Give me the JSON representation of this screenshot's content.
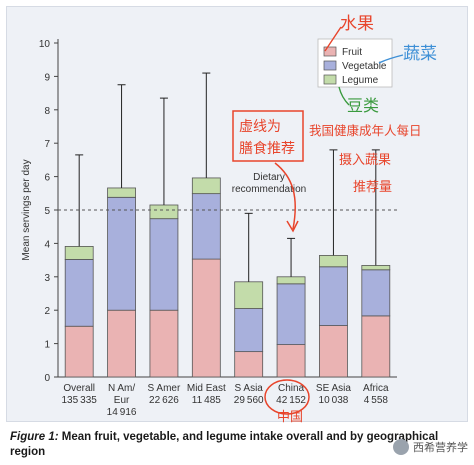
{
  "chart_data": {
    "type": "bar",
    "stacked": true,
    "ylabel": "Mean servings per day",
    "ylim": [
      0,
      10
    ],
    "yticks": [
      0,
      1,
      2,
      3,
      4,
      5,
      6,
      7,
      8,
      9,
      10
    ],
    "categories": [
      {
        "name": "Overall",
        "n": "135335"
      },
      {
        "name": "N Am/ Eur",
        "n": "14916"
      },
      {
        "name": "S Amer",
        "n": "22626"
      },
      {
        "name": "Mid East",
        "n": "11485"
      },
      {
        "name": "S Asia",
        "n": "29560"
      },
      {
        "name": "China",
        "n": "42152"
      },
      {
        "name": "SE Asia",
        "n": "10038"
      },
      {
        "name": "Africa",
        "n": "4558"
      }
    ],
    "series": [
      {
        "name": "Fruit",
        "color": "#eab3b3",
        "values": [
          1.52,
          2.0,
          2.0,
          3.53,
          0.76,
          0.97,
          1.54,
          1.83
        ]
      },
      {
        "name": "Vegetable",
        "color": "#a8b0dc",
        "values": [
          2.0,
          3.38,
          2.74,
          1.96,
          1.29,
          1.82,
          1.76,
          1.38
        ]
      },
      {
        "name": "Legume",
        "color": "#c3dcaa",
        "values": [
          0.39,
          0.28,
          0.41,
          0.47,
          0.8,
          0.21,
          0.34,
          0.13
        ]
      }
    ],
    "whisker_top": [
      6.65,
      8.75,
      8.35,
      9.1,
      4.9,
      4.15,
      6.8,
      6.8
    ],
    "reference_line": {
      "value": 5,
      "label": "Dietary recommendation"
    },
    "legend_position": "top-right"
  },
  "caption": {
    "figure_label": "Figure 1:",
    "text": "Mean fruit, vegetable, and legume intake overall and by geographical region"
  },
  "annotations": {
    "fruit_note": "水果",
    "vegetable_note": "蔬菜",
    "legume_note": "豆类",
    "box_note_line1": "虚线为",
    "box_note_line2": "膳食推荐",
    "side_note_line1": "我国健康成年人每日",
    "side_note_line2": "摄入蔬果",
    "side_note_line3": "推荐量",
    "china_note": "中国"
  },
  "watermark": "西希营养学"
}
